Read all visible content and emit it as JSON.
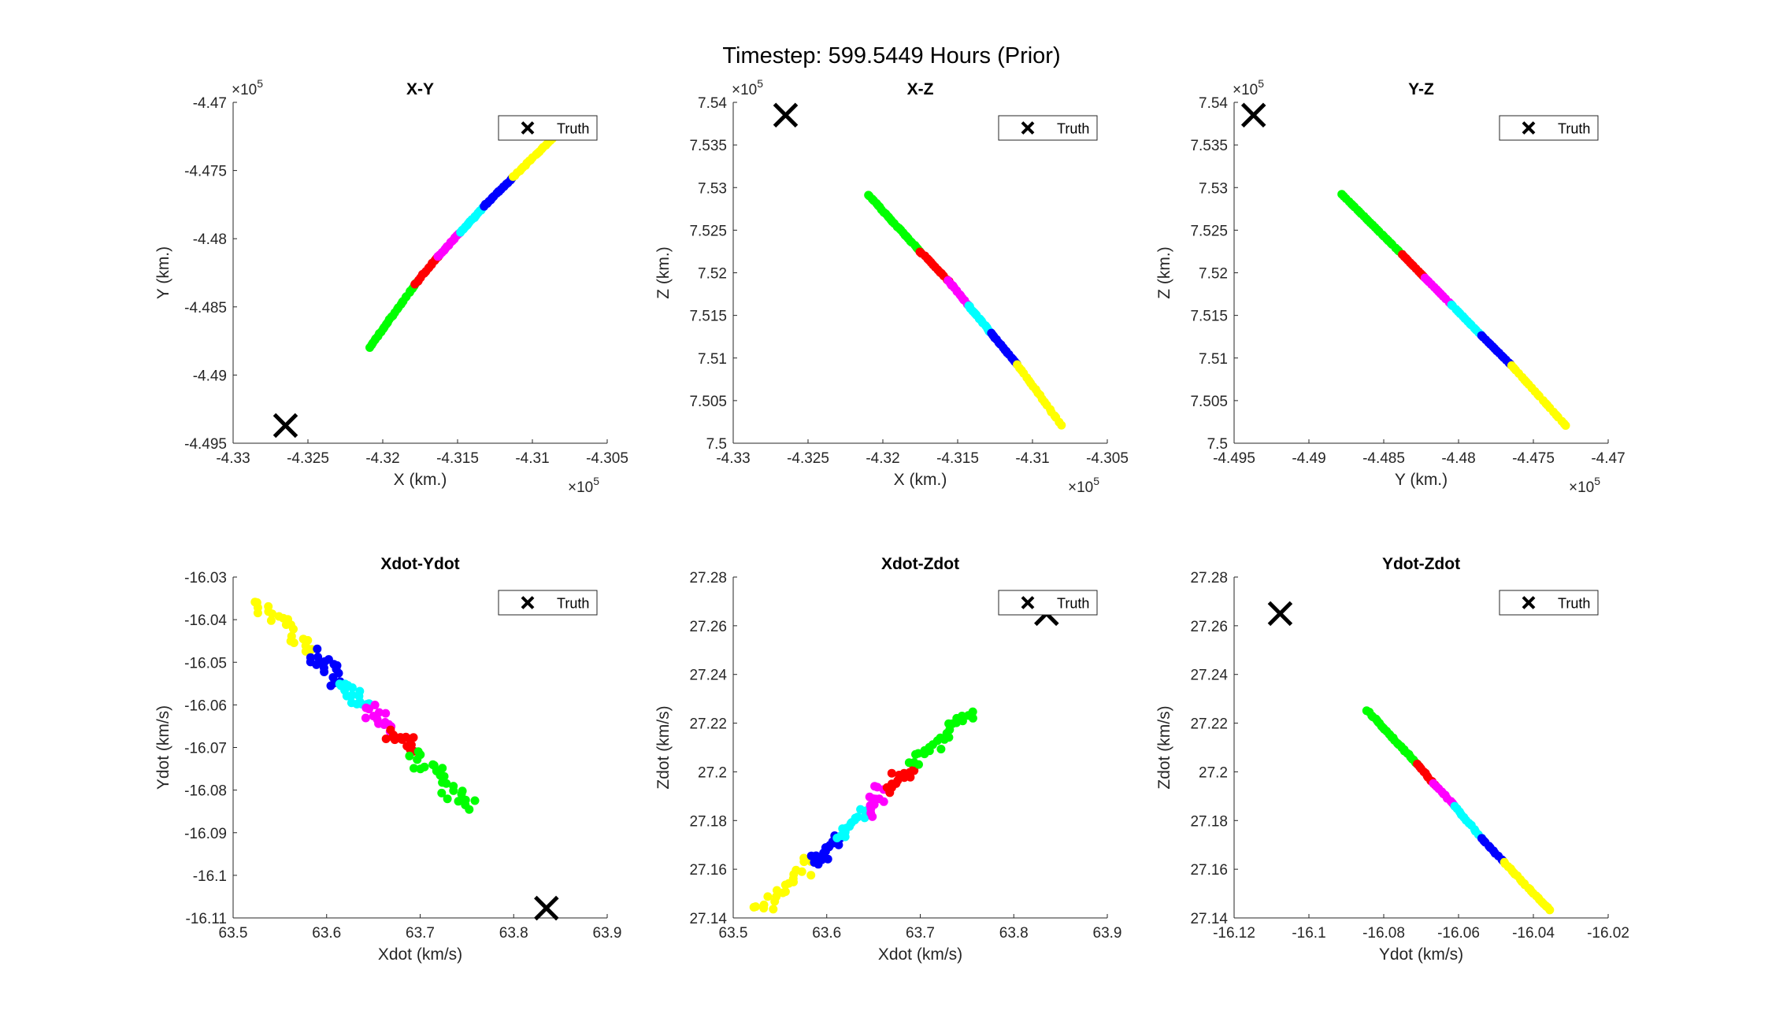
{
  "figure_title": "Timestep: 599.5449 Hours (Prior)",
  "colors": {
    "green": "#00ff00",
    "red": "#ff0000",
    "magenta": "#ff00ff",
    "cyan": "#00ffff",
    "blue": "#0000ff",
    "yellow": "#ffff00",
    "truth": "#000000"
  },
  "chart_data": [
    {
      "type": "scatter",
      "title": "X-Y",
      "xlabel": "X (km.)",
      "ylabel": "Y (km.)",
      "x_exponent": "5",
      "y_exponent": "5",
      "xlim": [
        -4.33,
        -4.305
      ],
      "ylim": [
        -4.495,
        -4.47
      ],
      "xticks": [
        -4.33,
        -4.325,
        -4.32,
        -4.315,
        -4.31,
        -4.305
      ],
      "xticklabels": [
        "-4.33",
        "-4.325",
        "-4.32",
        "-4.315",
        "-4.31",
        "-4.305"
      ],
      "yticks": [
        -4.495,
        -4.49,
        -4.485,
        -4.48,
        -4.475,
        -4.47
      ],
      "yticklabels": [
        "-4.495",
        "-4.49",
        "-4.485",
        "-4.48",
        "-4.475",
        "-4.47"
      ],
      "legend": "Truth",
      "legend_position": "top-right",
      "truth": [
        -4.3265,
        -4.4937
      ],
      "series": [
        {
          "color": "green",
          "from": [
            -4.3209,
            -4.488
          ],
          "to": [
            -4.3178,
            -4.4833
          ],
          "count": 28,
          "spread": 0.0035
        },
        {
          "color": "red",
          "from": [
            -4.3178,
            -4.4833
          ],
          "to": [
            -4.3163,
            -4.4813
          ],
          "count": 14,
          "spread": 0.0035
        },
        {
          "color": "magenta",
          "from": [
            -4.3163,
            -4.4813
          ],
          "to": [
            -4.3148,
            -4.4795
          ],
          "count": 14,
          "spread": 0.0035
        },
        {
          "color": "cyan",
          "from": [
            -4.3148,
            -4.4795
          ],
          "to": [
            -4.3132,
            -4.4776
          ],
          "count": 16,
          "spread": 0.0035
        },
        {
          "color": "blue",
          "from": [
            -4.3132,
            -4.4776
          ],
          "to": [
            -4.3113,
            -4.4755
          ],
          "count": 18,
          "spread": 0.0035
        },
        {
          "color": "yellow",
          "from": [
            -4.3113,
            -4.4755
          ],
          "to": [
            -4.3087,
            -4.4727
          ],
          "count": 20,
          "spread": 0.0035
        }
      ]
    },
    {
      "type": "scatter",
      "title": "X-Z",
      "xlabel": "X (km.)",
      "ylabel": "Z (km.)",
      "x_exponent": "5",
      "y_exponent": "5",
      "xlim": [
        -4.33,
        -4.305
      ],
      "ylim": [
        7.5,
        7.54
      ],
      "xticks": [
        -4.33,
        -4.325,
        -4.32,
        -4.315,
        -4.31,
        -4.305
      ],
      "xticklabels": [
        "-4.33",
        "-4.325",
        "-4.32",
        "-4.315",
        "-4.31",
        "-4.305"
      ],
      "yticks": [
        7.5,
        7.505,
        7.51,
        7.515,
        7.52,
        7.525,
        7.53,
        7.535,
        7.54
      ],
      "yticklabels": [
        "7.5",
        "7.505",
        "7.51",
        "7.515",
        "7.52",
        "7.525",
        "7.53",
        "7.535",
        "7.54"
      ],
      "legend": "Truth",
      "legend_position": "top-right",
      "truth": [
        -4.3265,
        7.5385
      ],
      "series": [
        {
          "color": "green",
          "from": [
            -4.321,
            7.5292
          ],
          "to": [
            -4.3175,
            7.5225
          ],
          "count": 28,
          "spread": 0.003
        },
        {
          "color": "red",
          "from": [
            -4.3175,
            7.5225
          ],
          "to": [
            -4.3156,
            7.519
          ],
          "count": 14,
          "spread": 0.003
        },
        {
          "color": "magenta",
          "from": [
            -4.3156,
            7.519
          ],
          "to": [
            -4.3143,
            7.5162
          ],
          "count": 14,
          "spread": 0.003
        },
        {
          "color": "cyan",
          "from": [
            -4.3143,
            7.5162
          ],
          "to": [
            -4.3128,
            7.513
          ],
          "count": 16,
          "spread": 0.003
        },
        {
          "color": "blue",
          "from": [
            -4.3128,
            7.513
          ],
          "to": [
            -4.311,
            7.5092
          ],
          "count": 18,
          "spread": 0.003
        },
        {
          "color": "yellow",
          "from": [
            -4.311,
            7.5092
          ],
          "to": [
            -4.3081,
            7.5022
          ],
          "count": 20,
          "spread": 0.003
        }
      ]
    },
    {
      "type": "scatter",
      "title": "Y-Z",
      "xlabel": "Y (km.)",
      "ylabel": "Z (km.)",
      "x_exponent": "5",
      "y_exponent": "5",
      "xlim": [
        -4.495,
        -4.47
      ],
      "ylim": [
        7.5,
        7.54
      ],
      "xticks": [
        -4.495,
        -4.49,
        -4.485,
        -4.48,
        -4.475,
        -4.47
      ],
      "xticklabels": [
        "-4.495",
        "-4.49",
        "-4.485",
        "-4.48",
        "-4.475",
        "-4.47"
      ],
      "yticks": [
        7.5,
        7.505,
        7.51,
        7.515,
        7.52,
        7.525,
        7.53,
        7.535,
        7.54
      ],
      "yticklabels": [
        "7.5",
        "7.505",
        "7.51",
        "7.515",
        "7.52",
        "7.525",
        "7.53",
        "7.535",
        "7.54"
      ],
      "legend": "Truth",
      "legend_position": "top-right",
      "truth": [
        -4.4937,
        7.5385
      ],
      "series": [
        {
          "color": "green",
          "from": [
            -4.4878,
            7.5292
          ],
          "to": [
            -4.4838,
            7.5222
          ],
          "count": 28,
          "spread": 0.0005
        },
        {
          "color": "red",
          "from": [
            -4.4838,
            7.5222
          ],
          "to": [
            -4.4823,
            7.5195
          ],
          "count": 12,
          "spread": 0.0005
        },
        {
          "color": "magenta",
          "from": [
            -4.4823,
            7.5195
          ],
          "to": [
            -4.4805,
            7.5163
          ],
          "count": 12,
          "spread": 0.0005
        },
        {
          "color": "cyan",
          "from": [
            -4.4805,
            7.5163
          ],
          "to": [
            -4.4785,
            7.5127
          ],
          "count": 14,
          "spread": 0.0005
        },
        {
          "color": "blue",
          "from": [
            -4.4785,
            7.5127
          ],
          "to": [
            -4.4765,
            7.5092
          ],
          "count": 14,
          "spread": 0.0005
        },
        {
          "color": "yellow",
          "from": [
            -4.4765,
            7.5092
          ],
          "to": [
            -4.4728,
            7.502
          ],
          "count": 22,
          "spread": 0.0005
        }
      ]
    },
    {
      "type": "scatter",
      "title": "Xdot-Ydot",
      "xlabel": "Xdot (km/s)",
      "ylabel": "Ydot (km/s)",
      "x_exponent": "",
      "y_exponent": "",
      "xlim": [
        63.5,
        63.9
      ],
      "ylim": [
        -16.11,
        -16.03
      ],
      "xticks": [
        63.5,
        63.6,
        63.7,
        63.8,
        63.9
      ],
      "xticklabels": [
        "63.5",
        "63.6",
        "63.7",
        "63.8",
        "63.9"
      ],
      "yticks": [
        -16.11,
        -16.1,
        -16.09,
        -16.08,
        -16.07,
        -16.06,
        -16.05,
        -16.04,
        -16.03
      ],
      "yticklabels": [
        "-16.11",
        "-16.1",
        "-16.09",
        "-16.08",
        "-16.07",
        "-16.06",
        "-16.05",
        "-16.04",
        "-16.03"
      ],
      "legend": "Truth",
      "legend_position": "top-right",
      "truth": [
        63.835,
        -16.1077
      ],
      "series": [
        {
          "color": "yellow",
          "from": [
            63.524,
            -16.0355
          ],
          "to": [
            63.585,
            -16.047
          ],
          "count": 22,
          "spread": 0.06
        },
        {
          "color": "blue",
          "from": [
            63.585,
            -16.048
          ],
          "to": [
            63.615,
            -16.0545
          ],
          "count": 18,
          "spread": 0.06
        },
        {
          "color": "cyan",
          "from": [
            63.615,
            -16.0545
          ],
          "to": [
            63.643,
            -16.0605
          ],
          "count": 16,
          "spread": 0.06
        },
        {
          "color": "magenta",
          "from": [
            63.643,
            -16.0605
          ],
          "to": [
            63.668,
            -16.066
          ],
          "count": 14,
          "spread": 0.06
        },
        {
          "color": "red",
          "from": [
            63.668,
            -16.066
          ],
          "to": [
            63.692,
            -16.071
          ],
          "count": 14,
          "spread": 0.06
        },
        {
          "color": "green",
          "from": [
            63.692,
            -16.071
          ],
          "to": [
            63.755,
            -16.0842
          ],
          "count": 26,
          "spread": 0.06
        }
      ]
    },
    {
      "type": "scatter",
      "title": "Xdot-Zdot",
      "xlabel": "Xdot (km/s)",
      "ylabel": "Zdot (km/s)",
      "x_exponent": "",
      "y_exponent": "",
      "xlim": [
        63.5,
        63.9
      ],
      "ylim": [
        27.14,
        27.28
      ],
      "xticks": [
        63.5,
        63.6,
        63.7,
        63.8,
        63.9
      ],
      "xticklabels": [
        "63.5",
        "63.6",
        "63.7",
        "63.8",
        "63.9"
      ],
      "yticks": [
        27.14,
        27.16,
        27.18,
        27.2,
        27.22,
        27.24,
        27.26,
        27.28
      ],
      "yticklabels": [
        "27.14",
        "27.16",
        "27.18",
        "27.2",
        "27.22",
        "27.24",
        "27.26",
        "27.28"
      ],
      "legend": "Truth",
      "legend_position": "top-right",
      "truth": [
        63.835,
        27.265
      ],
      "series": [
        {
          "color": "yellow",
          "from": [
            63.524,
            27.143
          ],
          "to": [
            63.585,
            27.163
          ],
          "count": 22,
          "spread": 0.06
        },
        {
          "color": "blue",
          "from": [
            63.585,
            27.163
          ],
          "to": [
            63.612,
            27.173
          ],
          "count": 18,
          "spread": 0.06
        },
        {
          "color": "cyan",
          "from": [
            63.612,
            27.173
          ],
          "to": [
            63.64,
            27.185
          ],
          "count": 16,
          "spread": 0.06
        },
        {
          "color": "magenta",
          "from": [
            63.64,
            27.185
          ],
          "to": [
            63.663,
            27.193
          ],
          "count": 14,
          "spread": 0.06
        },
        {
          "color": "red",
          "from": [
            63.663,
            27.193
          ],
          "to": [
            63.69,
            27.203
          ],
          "count": 14,
          "spread": 0.06
        },
        {
          "color": "green",
          "from": [
            63.69,
            27.203
          ],
          "to": [
            63.755,
            27.225
          ],
          "count": 26,
          "spread": 0.06
        }
      ]
    },
    {
      "type": "scatter",
      "title": "Ydot-Zdot",
      "xlabel": "Ydot (km/s)",
      "ylabel": "Zdot (km/s)",
      "x_exponent": "",
      "y_exponent": "",
      "xlim": [
        -16.12,
        -16.02
      ],
      "ylim": [
        27.14,
        27.28
      ],
      "xticks": [
        -16.12,
        -16.1,
        -16.08,
        -16.06,
        -16.04,
        -16.02
      ],
      "xticklabels": [
        "-16.12",
        "-16.1",
        "-16.08",
        "-16.06",
        "-16.04",
        "-16.02"
      ],
      "yticks": [
        27.14,
        27.16,
        27.18,
        27.2,
        27.22,
        27.24,
        27.26,
        27.28
      ],
      "yticklabels": [
        "27.14",
        "27.16",
        "27.18",
        "27.2",
        "27.22",
        "27.24",
        "27.26",
        "27.28"
      ],
      "legend": "Truth",
      "legend_position": "top-right",
      "truth": [
        -16.1077,
        27.265
      ],
      "series": [
        {
          "color": "green",
          "from": [
            -16.0842,
            27.225
          ],
          "to": [
            -16.071,
            27.203
          ],
          "count": 30,
          "spread": 0.004
        },
        {
          "color": "red",
          "from": [
            -16.071,
            27.203
          ],
          "to": [
            -16.0665,
            27.195
          ],
          "count": 10,
          "spread": 0.004
        },
        {
          "color": "magenta",
          "from": [
            -16.0665,
            27.195
          ],
          "to": [
            -16.061,
            27.186
          ],
          "count": 10,
          "spread": 0.004
        },
        {
          "color": "cyan",
          "from": [
            -16.061,
            27.186
          ],
          "to": [
            -16.054,
            27.173
          ],
          "count": 12,
          "spread": 0.004
        },
        {
          "color": "blue",
          "from": [
            -16.054,
            27.173
          ],
          "to": [
            -16.048,
            27.163
          ],
          "count": 10,
          "spread": 0.004
        },
        {
          "color": "yellow",
          "from": [
            -16.048,
            27.163
          ],
          "to": [
            -16.0355,
            27.143
          ],
          "count": 24,
          "spread": 0.004
        }
      ]
    }
  ]
}
